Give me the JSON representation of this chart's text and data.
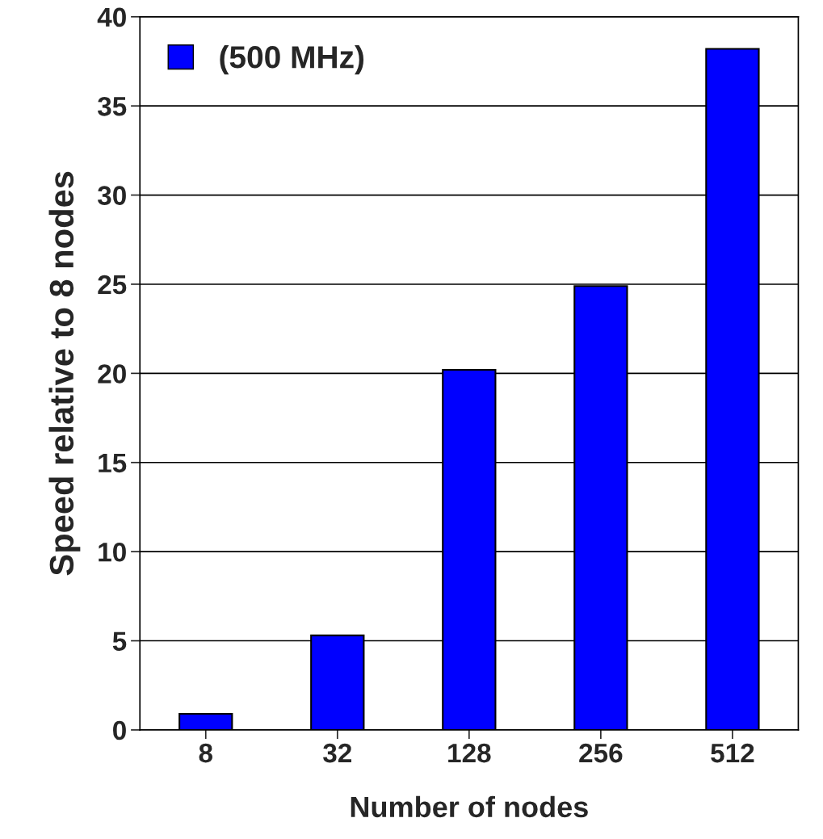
{
  "chart_data": {
    "type": "bar",
    "xlabel": "Number of nodes",
    "ylabel": "Speed relative to 8 nodes",
    "categories": [
      "8",
      "32",
      "128",
      "256",
      "512"
    ],
    "series": [
      {
        "name": "(500 MHz)",
        "color": "#0000ff",
        "values": [
          0.9,
          5.3,
          20.2,
          24.9,
          38.2
        ]
      }
    ],
    "ylim": [
      0,
      40
    ],
    "yticks": [
      0,
      5,
      10,
      15,
      20,
      25,
      30,
      35,
      40
    ],
    "grid": "y",
    "legend": "top left"
  }
}
